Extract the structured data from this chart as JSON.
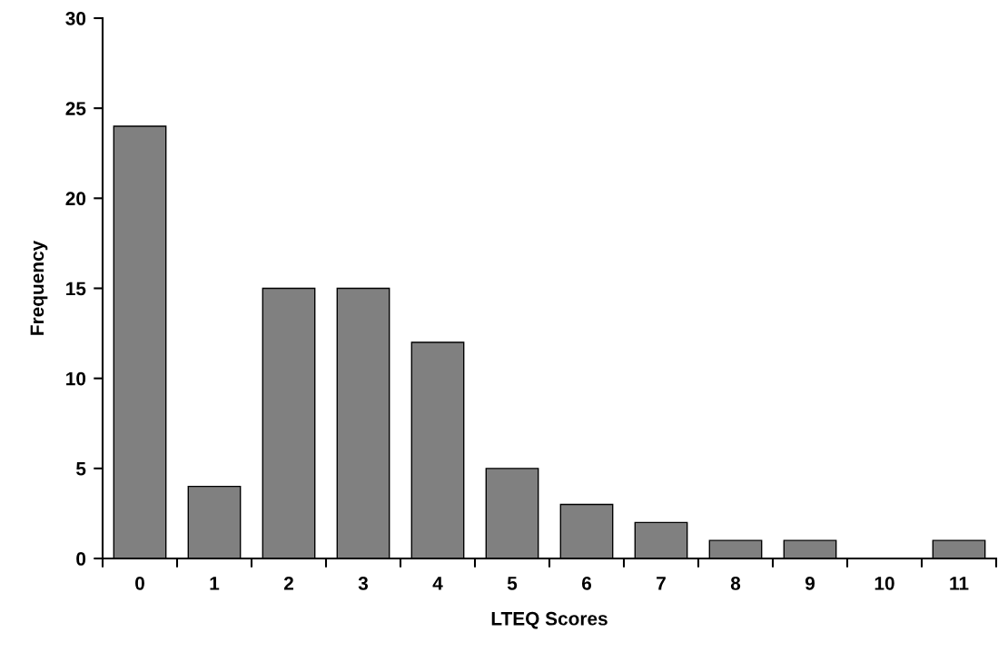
{
  "chart_data": {
    "type": "bar",
    "xlabel": "LTEQ Scores",
    "ylabel": "Frequency",
    "categories": [
      "0",
      "1",
      "2",
      "3",
      "4",
      "5",
      "6",
      "7",
      "8",
      "9",
      "10",
      "11"
    ],
    "values": [
      24,
      4,
      15,
      15,
      12,
      5,
      3,
      2,
      1,
      1,
      0,
      1
    ],
    "color": "#808080",
    "ylim": [
      0,
      30
    ],
    "yticks": [
      0,
      5,
      10,
      15,
      20,
      25,
      30
    ]
  }
}
